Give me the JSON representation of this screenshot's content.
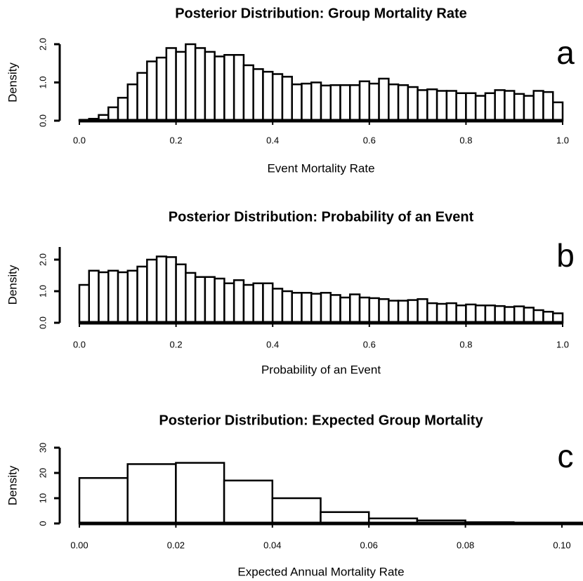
{
  "chart_data": [
    {
      "type": "histogram",
      "title": "Posterior Distribution: Group Mortality Rate",
      "x_label": "Event Mortality Rate",
      "y_label": "Density",
      "panel_label": "a",
      "bins": [
        0,
        0.02,
        0.04,
        0.06,
        0.08,
        0.1,
        0.12,
        0.14,
        0.16,
        0.18,
        0.2,
        0.22,
        0.24,
        0.26,
        0.28,
        0.3,
        0.32,
        0.34,
        0.36,
        0.38,
        0.4,
        0.42,
        0.44,
        0.46,
        0.48,
        0.5,
        0.52,
        0.54,
        0.56,
        0.58,
        0.6,
        0.62,
        0.64,
        0.66,
        0.68,
        0.7,
        0.72,
        0.74,
        0.76,
        0.78,
        0.8,
        0.82,
        0.84,
        0.86,
        0.88,
        0.9,
        0.92,
        0.94,
        0.96,
        0.98,
        1
      ],
      "values": [
        0.02,
        0.05,
        0.15,
        0.35,
        0.6,
        0.95,
        1.25,
        1.55,
        1.65,
        1.9,
        1.8,
        2.0,
        1.9,
        1.8,
        1.68,
        1.72,
        1.72,
        1.45,
        1.35,
        1.28,
        1.22,
        1.15,
        0.95,
        0.97,
        1.0,
        0.92,
        0.93,
        0.93,
        0.93,
        1.03,
        0.97,
        1.1,
        0.95,
        0.93,
        0.88,
        0.8,
        0.82,
        0.78,
        0.78,
        0.72,
        0.72,
        0.65,
        0.72,
        0.8,
        0.78,
        0.7,
        0.65,
        0.78,
        0.75,
        0.48
      ],
      "color": "#ffffff",
      "xlim": [
        0,
        1
      ],
      "xticks": [
        {
          "value": 0,
          "label": "0.0"
        },
        {
          "value": 0.2,
          "label": "0.2"
        },
        {
          "value": 0.4,
          "label": "0.4"
        },
        {
          "value": 0.6,
          "label": "0.6"
        },
        {
          "value": 0.8,
          "label": "0.8"
        },
        {
          "value": 1,
          "label": "1.0"
        }
      ],
      "ylim": [
        0,
        2
      ],
      "yticks": [
        {
          "value": 0,
          "label": "0.0"
        },
        {
          "value": 1,
          "label": "1.0"
        },
        {
          "value": 2,
          "label": "2.0"
        }
      ]
    },
    {
      "type": "histogram",
      "title": "Posterior Distribution: Probability of an Event",
      "x_label": "Probability of an Event",
      "y_label": "Density",
      "panel_label": "b",
      "bins": [
        0,
        0.02,
        0.04,
        0.06,
        0.08,
        0.1,
        0.12,
        0.14,
        0.16,
        0.18,
        0.2,
        0.22,
        0.24,
        0.26,
        0.28,
        0.3,
        0.32,
        0.34,
        0.36,
        0.38,
        0.4,
        0.42,
        0.44,
        0.46,
        0.48,
        0.5,
        0.52,
        0.54,
        0.56,
        0.58,
        0.6,
        0.62,
        0.64,
        0.66,
        0.68,
        0.7,
        0.72,
        0.74,
        0.76,
        0.78,
        0.8,
        0.82,
        0.84,
        0.86,
        0.88,
        0.9,
        0.92,
        0.94,
        0.96,
        0.98,
        1
      ],
      "values": [
        1.2,
        1.65,
        1.6,
        1.65,
        1.6,
        1.65,
        1.78,
        2.0,
        2.1,
        2.08,
        1.85,
        1.58,
        1.45,
        1.45,
        1.4,
        1.25,
        1.35,
        1.2,
        1.25,
        1.25,
        1.08,
        1.0,
        0.95,
        0.95,
        0.92,
        0.95,
        0.88,
        0.8,
        0.9,
        0.8,
        0.78,
        0.75,
        0.7,
        0.7,
        0.72,
        0.75,
        0.62,
        0.6,
        0.62,
        0.55,
        0.58,
        0.55,
        0.55,
        0.53,
        0.5,
        0.52,
        0.48,
        0.4,
        0.35,
        0.3
      ],
      "color": "#ffffff",
      "xlim": [
        0,
        1
      ],
      "xticks": [
        {
          "value": 0,
          "label": "0.0"
        },
        {
          "value": 0.2,
          "label": "0.2"
        },
        {
          "value": 0.4,
          "label": "0.4"
        },
        {
          "value": 0.6,
          "label": "0.6"
        },
        {
          "value": 0.8,
          "label": "0.8"
        },
        {
          "value": 1,
          "label": "1.0"
        }
      ],
      "ylim": [
        0,
        2.4
      ],
      "yticks": [
        {
          "value": 0,
          "label": "0.0"
        },
        {
          "value": 1,
          "label": "1.0"
        },
        {
          "value": 2,
          "label": "2.0"
        }
      ]
    },
    {
      "type": "histogram",
      "title": "Posterior Distribution: Expected Group Mortality",
      "x_label": "Expected Annual Mortality Rate",
      "y_label": "Density",
      "panel_label": "c",
      "bins": [
        0,
        0.01,
        0.02,
        0.03,
        0.04,
        0.05,
        0.06,
        0.07,
        0.08,
        0.09,
        0.1
      ],
      "values": [
        18,
        23.5,
        24,
        17,
        10,
        4.5,
        2,
        1.2,
        0.5,
        0.2
      ],
      "color": "#ffffff",
      "xlim": [
        0,
        0.1
      ],
      "xticks": [
        {
          "value": 0,
          "label": "0.00"
        },
        {
          "value": 0.02,
          "label": "0.02"
        },
        {
          "value": 0.04,
          "label": "0.04"
        },
        {
          "value": 0.06,
          "label": "0.06"
        },
        {
          "value": 0.08,
          "label": "0.08"
        },
        {
          "value": 0.1,
          "label": "0.10"
        }
      ],
      "ylim": [
        0,
        30
      ],
      "yticks": [
        0,
        10,
        20,
        30
      ]
    }
  ]
}
